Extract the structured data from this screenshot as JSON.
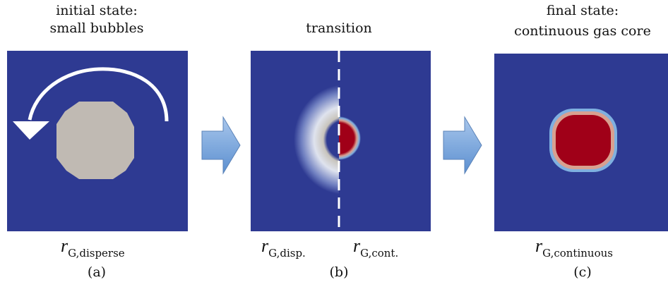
{
  "panels": [
    {
      "title": [
        "initial state:",
        "small bubbles"
      ],
      "label": {
        "symbol": "r",
        "subscript": "G,disperse"
      },
      "caption": "(a)"
    },
    {
      "title": [
        "transition"
      ],
      "labels": [
        {
          "symbol": "r",
          "subscript": "G,disp."
        },
        {
          "symbol": "r",
          "subscript": "G,cont."
        }
      ],
      "caption": "(b)"
    },
    {
      "title": [
        "final state:",
        "continuous gas core"
      ],
      "label": {
        "symbol": "r",
        "subscript": "G,continuous"
      },
      "caption": "(c)"
    }
  ]
}
